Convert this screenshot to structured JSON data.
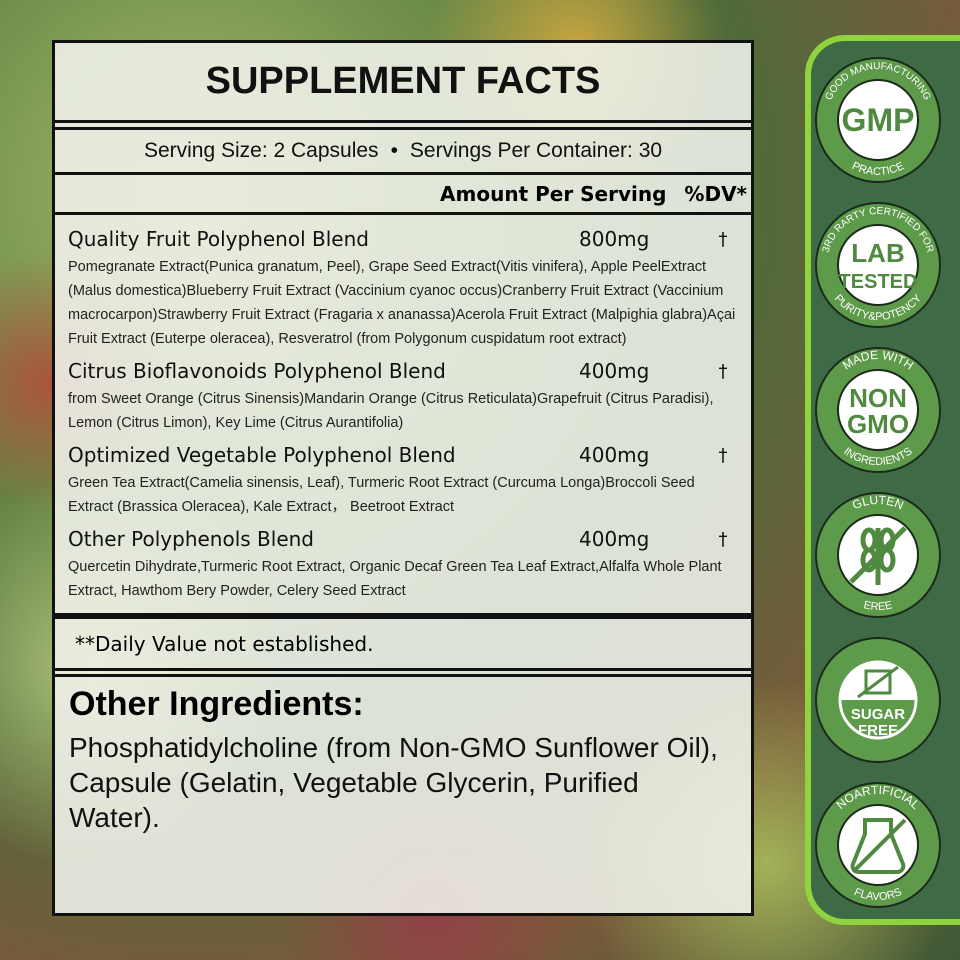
{
  "title": "SUPPLEMENT FACTS",
  "serving": {
    "size": "Serving Size: 2 Capsules",
    "bullet": "•",
    "per_container": "Servings Per Container: 30"
  },
  "columns": {
    "amount": "Amount Per Serving",
    "dv": "%DV*"
  },
  "blends": [
    {
      "name": "Quality Fruit Polyphenol Blend",
      "amount": "800mg",
      "dv": "†",
      "desc": "Pomegranate Extract(Punica granatum, Peel), Grape Seed Extract(Vitis vinifera), Apple PeelExtract (Malus domestica)Blueberry Fruit Extract (Vaccinium cyanoc occus)Cranberry Fruit Extract (Vaccinium macrocarpon)Strawberry Fruit Extract (Fragaria x ananassa)Acerola Fruit Extract (Malpighia glabra)Açai Fruit Extract (Euterpe oleracea), Resveratrol (from Polygonum cuspidatum root extract)"
    },
    {
      "name": "Citrus Bioflavonoids Polyphenol Blend",
      "amount": "400mg",
      "dv": "†",
      "desc": "from Sweet Orange (Citrus Sinensis)Mandarin Orange (Citrus Reticulata)Grapefruit (Citrus Paradisi), Lemon (Citrus Limon), Key Lime (Citrus Aurantifolia)"
    },
    {
      "name": "Optimized Vegetable Polyphenol Blend",
      "amount": "400mg",
      "dv": "†",
      "desc": " Green Tea Extract(Camelia sinensis, Leaf), Turmeric Root Extract (Curcuma Longa)Broccoli Seed Extract (Brassica Oleracea), Kale Extract， Beetroot Extract"
    },
    {
      "name": "Other Polyphenols Blend",
      "amount": "400mg",
      "dv": "†",
      "desc": "Quercetin Dihydrate,Turmeric Root Extract, Organic Decaf Green Tea Leaf Extract,Alfalfa Whole Plant Extract, Hawthom Bery Powder, Celery Seed Extract"
    }
  ],
  "daily_note": "**Daily Value not established.",
  "other_ingredients": {
    "heading": "Other Ingredients:",
    "text": "Phosphatidylcholine (from Non-GMO Sunflower Oil), Capsule (Gelatin, Vegetable Glycerin, Purified Water)."
  },
  "badges": [
    {
      "icon": "gmp-badge",
      "top": "GOOD MANUFACTURING",
      "center1": "GMP",
      "center2": "",
      "bottom": "PRACTICE"
    },
    {
      "icon": "lab-tested-badge",
      "top": "3RD RARTY CERTIFIED FOR",
      "center1": "LAB",
      "center2": "TESTED",
      "bottom": "PURITY&POTENCY"
    },
    {
      "icon": "non-gmo-badge",
      "top": "MADE WITH",
      "center1": "NON",
      "center2": "GMO",
      "bottom": "INGREDIENTS"
    },
    {
      "icon": "gluten-free-badge",
      "top": "GLUTEN",
      "center1": "",
      "center2": "",
      "bottom": "EREE"
    },
    {
      "icon": "sugar-free-badge",
      "top": "",
      "center1": "SUGAR",
      "center2": "FREE",
      "bottom": ""
    },
    {
      "icon": "no-artificial-flavors-badge",
      "top": "NOARTIFICIAL",
      "center1": "",
      "center2": "",
      "bottom": "FLAVORS"
    }
  ],
  "colors": {
    "panel": "#3e6b46",
    "panel_border": "#8fd43e",
    "badge_ring": "#5d9a4a",
    "badge_text": "#4f8a40"
  }
}
